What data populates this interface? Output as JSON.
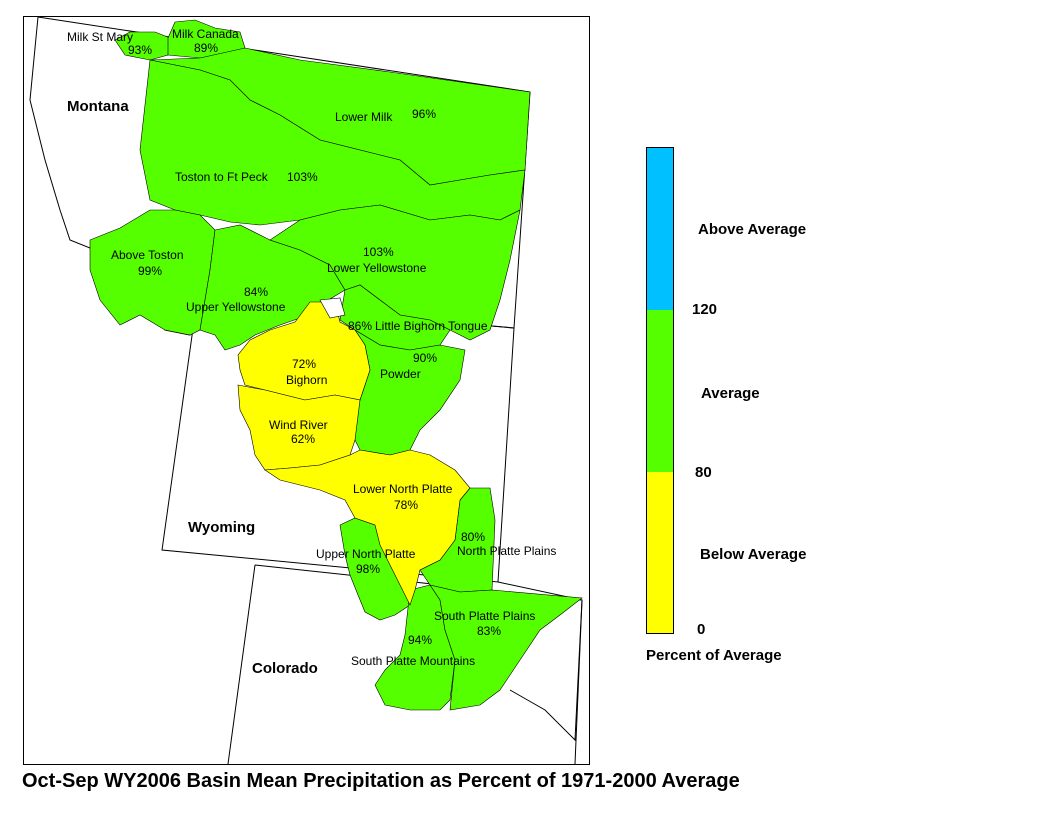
{
  "caption": "Oct-Sep WY2006 Basin Mean Precipitation as Percent of 1971-2000 Average",
  "colors": {
    "above": "#00c0ff",
    "average": "#55ff00",
    "below": "#ffff00"
  },
  "states": {
    "montana": "Montana",
    "wyoming": "Wyoming",
    "colorado": "Colorado"
  },
  "basins": {
    "milk_st_mary": {
      "name": "Milk St Mary",
      "pct": "93%"
    },
    "milk_canada": {
      "name": "Milk Canada",
      "pct": "89%"
    },
    "lower_milk": {
      "name": "Lower Milk",
      "pct": "96%"
    },
    "toston_ft_peck": {
      "name": "Toston to Ft Peck",
      "pct": "103%"
    },
    "above_toston": {
      "name": "Above Toston",
      "pct": "99%"
    },
    "lower_yellowstone": {
      "name": "Lower Yellowstone",
      "pct": "103%"
    },
    "upper_yellowstone": {
      "name": "Upper Yellowstone",
      "pct": "84%"
    },
    "little_bighorn": {
      "name": "Little Bighorn Tongue",
      "pct": "86%"
    },
    "bighorn": {
      "name": "Bighorn",
      "pct": "72%"
    },
    "powder": {
      "name": "Powder",
      "pct": "90%"
    },
    "wind_river": {
      "name": "Wind River",
      "pct": "62%"
    },
    "lower_north_platte": {
      "name": "Lower North Platte",
      "pct": "78%"
    },
    "north_platte_plains": {
      "name": "North Platte Plains",
      "pct": "80%"
    },
    "upper_north_platte": {
      "name": "Upper North Platte",
      "pct": "98%"
    },
    "south_platte_plains": {
      "name": "South Platte Plains",
      "pct": "83%"
    },
    "south_platte_mountains": {
      "name": "South Platte Mountains",
      "pct": "94%"
    }
  },
  "legend": {
    "title": "Percent of Average",
    "classes": [
      {
        "label": "Above Average",
        "min": 120,
        "color": "#00c0ff"
      },
      {
        "label": "Average",
        "min": 80,
        "max": 120,
        "color": "#55ff00"
      },
      {
        "label": "Below Average",
        "min": 0,
        "max": 80,
        "color": "#ffff00"
      }
    ],
    "ticks": [
      "120",
      "80",
      "0"
    ]
  }
}
